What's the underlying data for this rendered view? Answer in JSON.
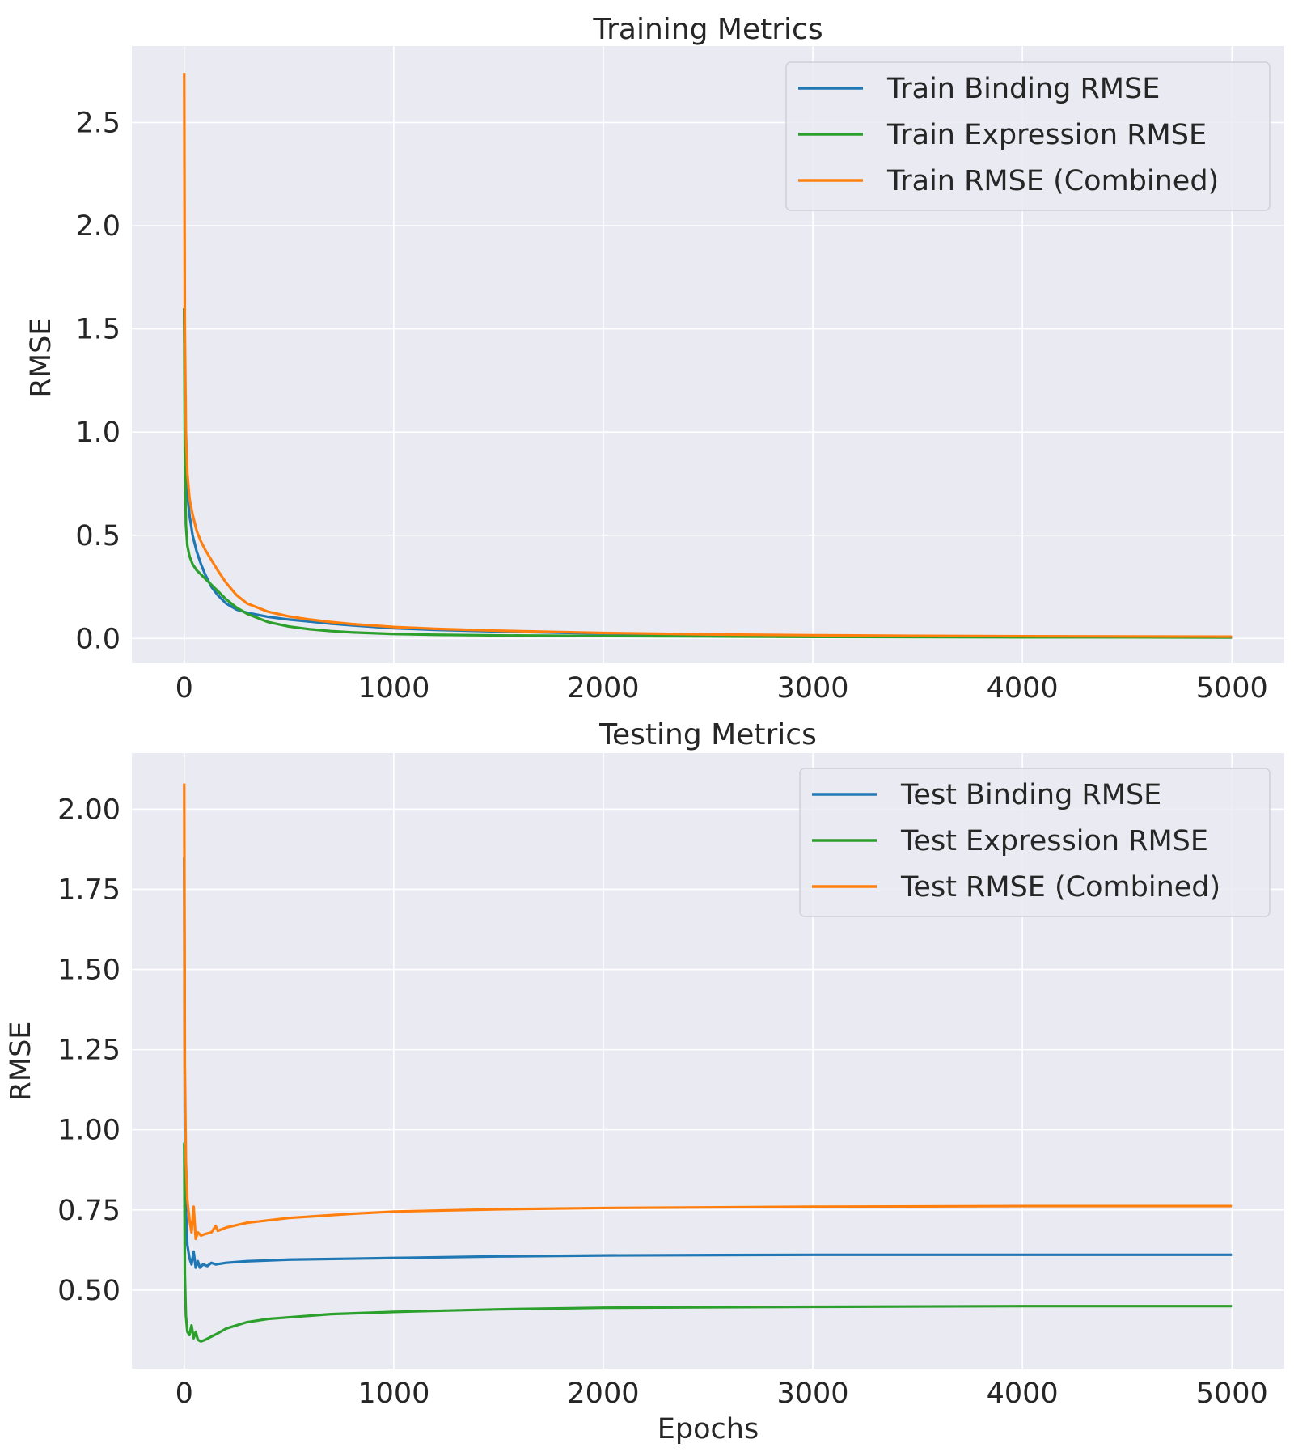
{
  "chart_data": [
    {
      "type": "line",
      "title": "Training Metrics",
      "xlabel": "",
      "ylabel": "RMSE",
      "xlim": [
        -250,
        5250
      ],
      "ylim": [
        -0.12,
        2.87
      ],
      "x_ticks": [
        0,
        1000,
        2000,
        3000,
        4000,
        5000
      ],
      "x_tick_labels": [
        "0",
        "1000",
        "2000",
        "3000",
        "4000",
        "5000"
      ],
      "y_ticks": [
        0.0,
        0.5,
        1.0,
        1.5,
        2.0,
        2.5
      ],
      "y_tick_labels": [
        "0.0",
        "0.5",
        "1.0",
        "1.5",
        "2.0",
        "2.5"
      ],
      "grid": true,
      "legend_position": "top-right",
      "series": [
        {
          "name": "Train Binding RMSE",
          "color": "#1f77b4",
          "x": [
            0,
            3,
            8,
            15,
            25,
            40,
            60,
            80,
            100,
            130,
            160,
            200,
            250,
            300,
            400,
            500,
            600,
            700,
            800,
            1000,
            1200,
            1500,
            2000,
            2500,
            3000,
            3500,
            4000,
            4500,
            5000
          ],
          "y": [
            1.6,
            1.2,
            0.85,
            0.7,
            0.6,
            0.5,
            0.42,
            0.36,
            0.31,
            0.25,
            0.21,
            0.17,
            0.14,
            0.125,
            0.105,
            0.092,
            0.082,
            0.072,
            0.064,
            0.05,
            0.042,
            0.034,
            0.024,
            0.018,
            0.014,
            0.011,
            0.009,
            0.008,
            0.007
          ]
        },
        {
          "name": "Train Expression RMSE",
          "color": "#2ca02c",
          "x": [
            0,
            3,
            8,
            15,
            25,
            40,
            60,
            80,
            100,
            130,
            160,
            200,
            250,
            300,
            400,
            500,
            600,
            700,
            800,
            1000,
            1200,
            1500,
            2000,
            2500,
            3000,
            3500,
            4000,
            4500,
            5000
          ],
          "y": [
            1.6,
            0.9,
            0.55,
            0.45,
            0.4,
            0.36,
            0.33,
            0.31,
            0.29,
            0.26,
            0.23,
            0.19,
            0.15,
            0.12,
            0.08,
            0.058,
            0.045,
            0.036,
            0.03,
            0.022,
            0.018,
            0.015,
            0.012,
            0.01,
            0.008,
            0.007,
            0.006,
            0.006,
            0.005
          ]
        },
        {
          "name": "Train RMSE (Combined)",
          "color": "#ff7f0e",
          "x": [
            0,
            3,
            8,
            15,
            25,
            40,
            60,
            80,
            100,
            130,
            160,
            200,
            250,
            300,
            400,
            500,
            600,
            700,
            800,
            1000,
            1200,
            1500,
            2000,
            2500,
            3000,
            3500,
            4000,
            4500,
            5000
          ],
          "y": [
            2.74,
            1.5,
            1.0,
            0.8,
            0.68,
            0.6,
            0.52,
            0.47,
            0.43,
            0.38,
            0.33,
            0.27,
            0.21,
            0.17,
            0.13,
            0.107,
            0.092,
            0.08,
            0.07,
            0.056,
            0.047,
            0.038,
            0.027,
            0.02,
            0.016,
            0.013,
            0.011,
            0.01,
            0.009
          ]
        }
      ]
    },
    {
      "type": "line",
      "title": "Testing Metrics",
      "xlabel": "Epochs",
      "ylabel": "RMSE",
      "xlim": [
        -250,
        5250
      ],
      "ylim": [
        0.255,
        2.175
      ],
      "x_ticks": [
        0,
        1000,
        2000,
        3000,
        4000,
        5000
      ],
      "x_tick_labels": [
        "0",
        "1000",
        "2000",
        "3000",
        "4000",
        "5000"
      ],
      "y_ticks": [
        0.5,
        0.75,
        1.0,
        1.25,
        1.5,
        1.75,
        2.0
      ],
      "y_tick_labels": [
        "0.50",
        "0.75",
        "1.00",
        "1.25",
        "1.50",
        "1.75",
        "2.00"
      ],
      "grid": true,
      "legend_position": "top-right",
      "series": [
        {
          "name": "Test Binding RMSE",
          "color": "#1f77b4",
          "x": [
            0,
            3,
            8,
            15,
            25,
            35,
            45,
            55,
            65,
            75,
            90,
            110,
            130,
            150,
            200,
            300,
            500,
            800,
            1000,
            1500,
            2000,
            3000,
            4000,
            5000
          ],
          "y": [
            1.85,
            1.0,
            0.75,
            0.64,
            0.6,
            0.58,
            0.62,
            0.57,
            0.59,
            0.57,
            0.58,
            0.575,
            0.585,
            0.58,
            0.585,
            0.59,
            0.595,
            0.598,
            0.6,
            0.605,
            0.608,
            0.61,
            0.61,
            0.61
          ]
        },
        {
          "name": "Test Expression RMSE",
          "color": "#2ca02c",
          "x": [
            0,
            3,
            8,
            15,
            25,
            35,
            45,
            55,
            65,
            80,
            100,
            130,
            160,
            200,
            300,
            400,
            500,
            700,
            1000,
            1500,
            2000,
            3000,
            4000,
            5000
          ],
          "y": [
            0.96,
            0.55,
            0.42,
            0.37,
            0.36,
            0.39,
            0.35,
            0.37,
            0.345,
            0.34,
            0.345,
            0.355,
            0.365,
            0.38,
            0.4,
            0.41,
            0.415,
            0.425,
            0.432,
            0.44,
            0.445,
            0.448,
            0.45,
            0.45
          ]
        },
        {
          "name": "Test RMSE (Combined)",
          "color": "#ff7f0e",
          "x": [
            0,
            3,
            8,
            15,
            25,
            35,
            45,
            55,
            65,
            80,
            100,
            130,
            150,
            160,
            200,
            300,
            500,
            800,
            1000,
            1500,
            2000,
            3000,
            4000,
            5000
          ],
          "y": [
            2.08,
            1.2,
            0.9,
            0.78,
            0.72,
            0.68,
            0.76,
            0.66,
            0.68,
            0.67,
            0.675,
            0.68,
            0.7,
            0.685,
            0.695,
            0.71,
            0.725,
            0.738,
            0.745,
            0.752,
            0.756,
            0.76,
            0.762,
            0.762
          ]
        }
      ]
    }
  ]
}
